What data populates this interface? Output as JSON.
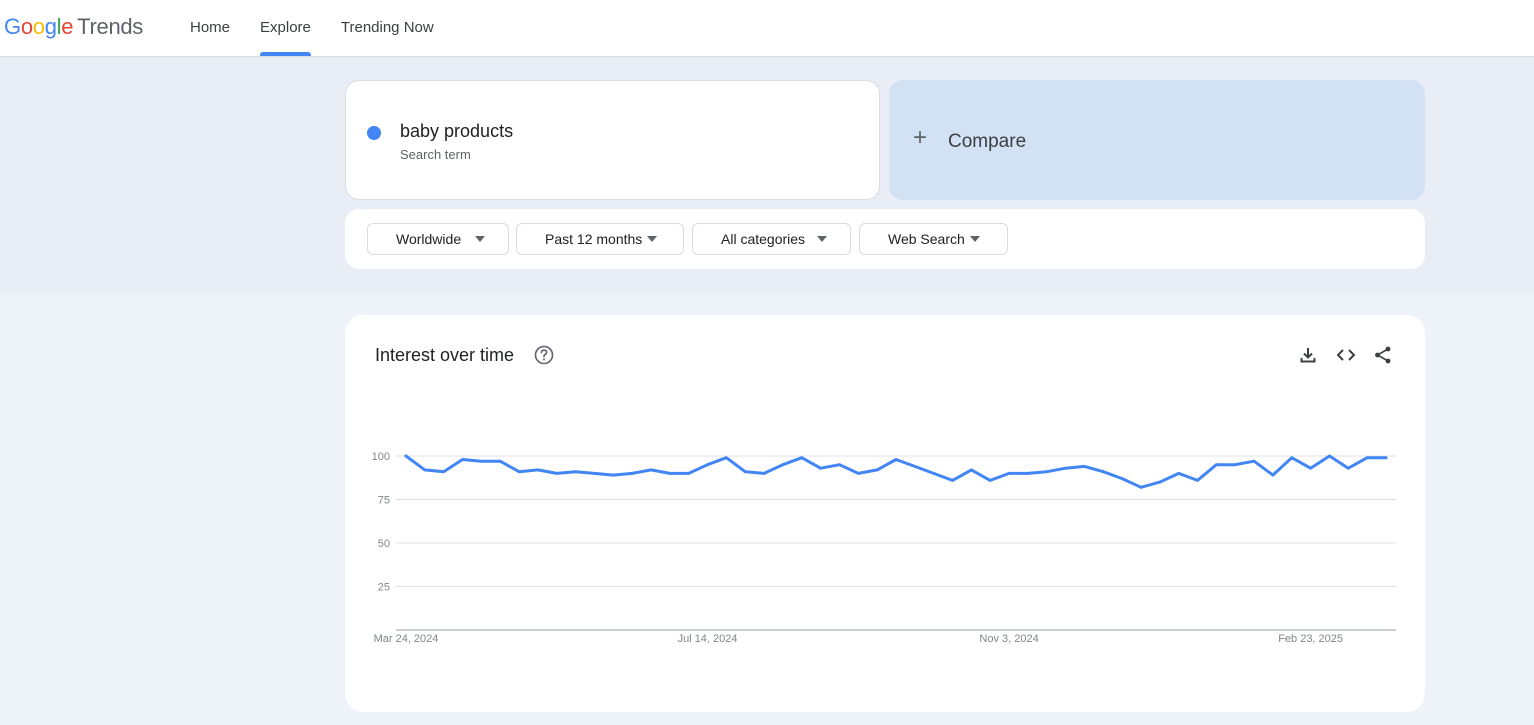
{
  "header": {
    "logo_letters": [
      "G",
      "o",
      "o",
      "g",
      "l",
      "e"
    ],
    "product": "Trends",
    "nav": [
      "Home",
      "Explore",
      "Trending Now"
    ],
    "active_nav": "Explore"
  },
  "search": {
    "term": "baby products",
    "term_type": "Search term",
    "term_color": "#4285f4",
    "compare_label": "Compare"
  },
  "filters": {
    "region": "Worldwide",
    "time": "Past 12 months",
    "category": "All categories",
    "property": "Web Search"
  },
  "chart_card": {
    "title": "Interest over time",
    "icons": [
      "help-icon",
      "download-icon",
      "embed-code-icon",
      "share-icon"
    ]
  },
  "chart_data": {
    "type": "line",
    "ylim": [
      0,
      100
    ],
    "y_ticks": [
      25,
      50,
      75,
      100
    ],
    "x_ticks": [
      {
        "label": "Mar 24, 2024",
        "index": 0
      },
      {
        "label": "Jul 14, 2024",
        "index": 16
      },
      {
        "label": "Nov 3, 2024",
        "index": 32
      },
      {
        "label": "Feb 23, 2025",
        "index": 48
      }
    ],
    "series": [
      {
        "color": "#4285f4",
        "values": [
          100,
          92,
          91,
          98,
          97,
          97,
          91,
          92,
          90,
          91,
          90,
          89,
          90,
          92,
          90,
          90,
          95,
          99,
          91,
          90,
          95,
          99,
          93,
          95,
          90,
          92,
          98,
          94,
          90,
          86,
          92,
          86,
          90,
          90,
          91,
          93,
          94,
          91,
          87,
          82,
          85,
          90,
          86,
          95,
          95,
          97,
          89,
          99,
          93,
          100,
          93,
          99,
          99
        ]
      }
    ],
    "grid": true
  }
}
